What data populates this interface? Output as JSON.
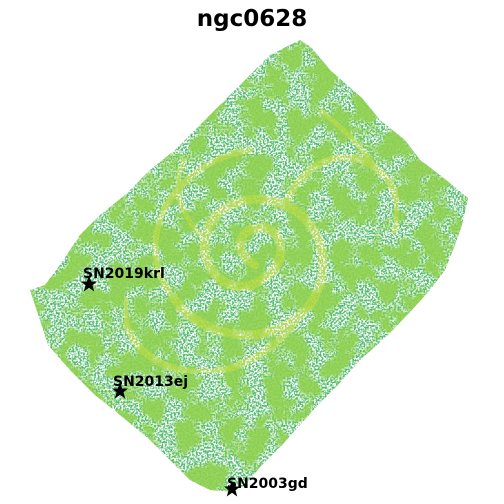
{
  "title": "ngc0628",
  "colors": {
    "background": "#ffffff",
    "emission_low": "#4fb86a",
    "emission_mid": "#8fd14f",
    "emission_high": "#d6e23a",
    "marker": "#000000"
  },
  "supernovae": [
    {
      "name": "SN2019krl",
      "marker": "star-icon"
    },
    {
      "name": "SN2013ej",
      "marker": "star-icon"
    },
    {
      "name": "SN2003gd",
      "marker": "star-icon"
    }
  ]
}
